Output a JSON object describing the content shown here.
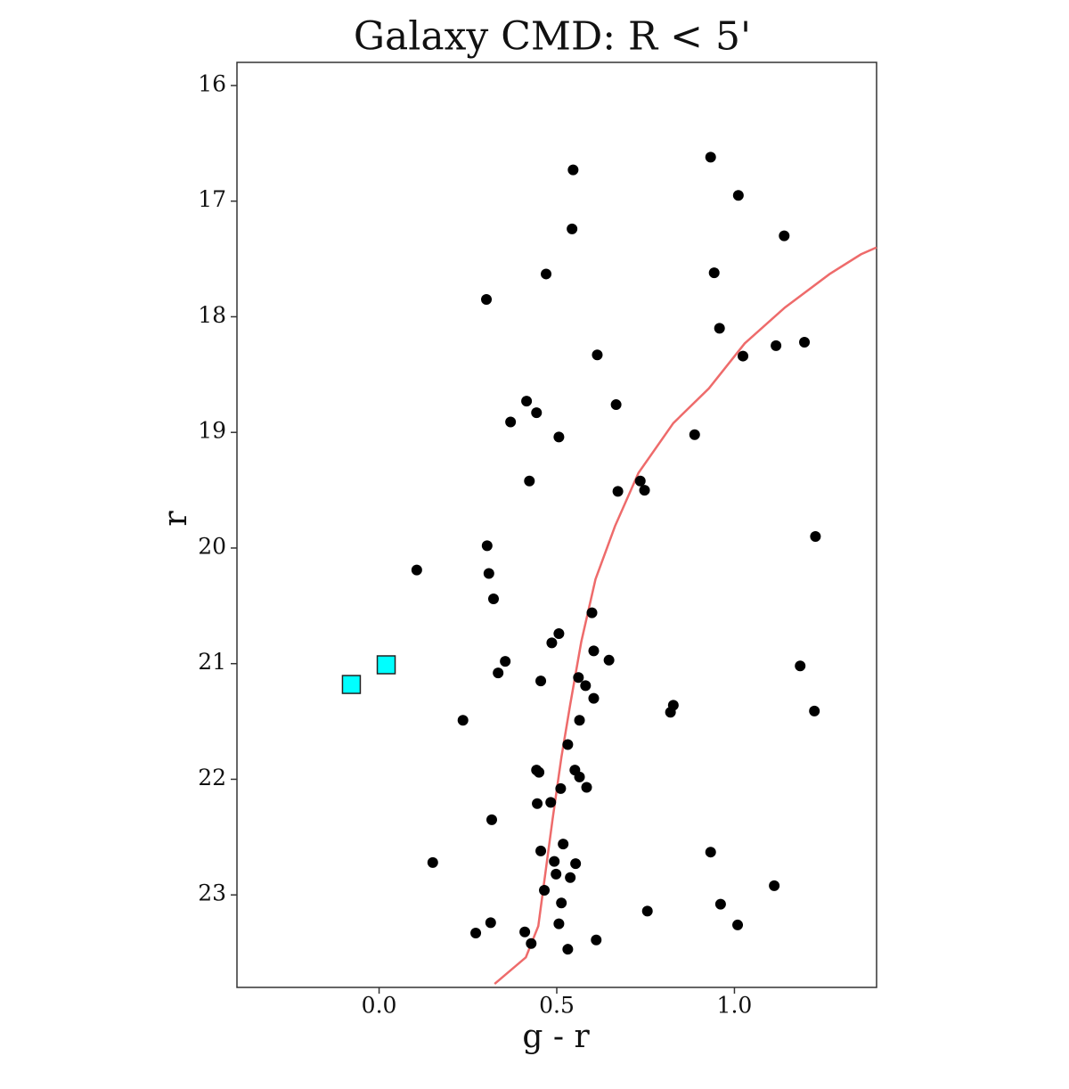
{
  "chart_data": {
    "type": "scatter",
    "title": "Galaxy CMD: R < 5'",
    "x_label": "g - r",
    "y_label": "r",
    "xlim": [
      -0.4,
      1.4
    ],
    "ylim": [
      23.8,
      15.8
    ],
    "xticks": [
      {
        "value": 0,
        "label": "0.0"
      },
      {
        "value": 0.5,
        "label": "0.5"
      },
      {
        "value": 1,
        "label": "1.0"
      }
    ],
    "yticks": [
      16,
      17,
      18,
      19,
      20,
      21,
      22,
      23
    ],
    "series": [
      {
        "type": "line",
        "color": "#ee6b6b",
        "x": [
          0.325,
          0.413,
          0.448,
          0.468,
          0.488,
          0.513,
          0.538,
          0.569,
          0.609,
          0.664,
          0.73,
          0.828,
          0.928,
          1.029,
          1.142,
          1.268,
          1.356,
          1.4
        ],
        "values": [
          23.77,
          23.54,
          23.27,
          22.81,
          22.35,
          21.81,
          21.35,
          20.81,
          20.27,
          19.81,
          19.35,
          18.92,
          18.62,
          18.23,
          17.92,
          17.63,
          17.46,
          17.4
        ]
      },
      {
        "type": "scatter",
        "marker": "circle",
        "color": "#000000",
        "x": [
          0.546,
          0.933,
          1.011,
          0.543,
          1.14,
          0.47,
          0.943,
          0.302,
          0.958,
          1.117,
          1.197,
          1.024,
          0.614,
          0.415,
          0.443,
          0.37,
          0.667,
          0.506,
          0.888,
          0.423,
          0.735,
          0.747,
          0.672,
          1.228,
          0.304,
          0.309,
          0.106,
          0.322,
          0.599,
          0.506,
          0.486,
          0.604,
          0.647,
          0.355,
          0.335,
          1.185,
          0.561,
          0.455,
          0.581,
          0.604,
          0.828,
          0.82,
          1.225,
          0.236,
          0.564,
          0.531,
          0.443,
          0.45,
          0.551,
          0.564,
          0.584,
          0.511,
          0.483,
          0.445,
          0.317,
          0.518,
          0.455,
          0.933,
          0.493,
          0.553,
          0.151,
          0.498,
          0.538,
          1.112,
          0.465,
          0.513,
          0.961,
          0.755,
          0.506,
          0.314,
          1.009,
          0.272,
          0.41,
          0.428,
          0.611,
          0.531
        ],
        "values": [
          16.73,
          16.62,
          16.95,
          17.24,
          17.3,
          17.63,
          17.62,
          17.85,
          18.1,
          18.25,
          18.22,
          18.34,
          18.33,
          18.73,
          18.83,
          18.91,
          18.76,
          19.04,
          19.02,
          19.42,
          19.42,
          19.5,
          19.51,
          19.9,
          19.98,
          20.22,
          20.19,
          20.44,
          20.56,
          20.74,
          20.82,
          20.89,
          20.97,
          20.98,
          21.08,
          21.02,
          21.12,
          21.15,
          21.19,
          21.3,
          21.36,
          21.42,
          21.41,
          21.49,
          21.49,
          21.7,
          21.92,
          21.94,
          21.92,
          21.98,
          22.07,
          22.08,
          22.2,
          22.21,
          22.35,
          22.56,
          22.62,
          22.63,
          22.71,
          22.73,
          22.72,
          22.82,
          22.85,
          22.92,
          22.96,
          23.07,
          23.08,
          23.14,
          23.25,
          23.24,
          23.26,
          23.33,
          23.32,
          23.42,
          23.39,
          23.47
        ]
      },
      {
        "type": "scatter",
        "marker": "square",
        "color": "#00ffff",
        "x": [
          -0.078,
          0.02
        ],
        "values": [
          21.18,
          21.01
        ]
      }
    ]
  }
}
